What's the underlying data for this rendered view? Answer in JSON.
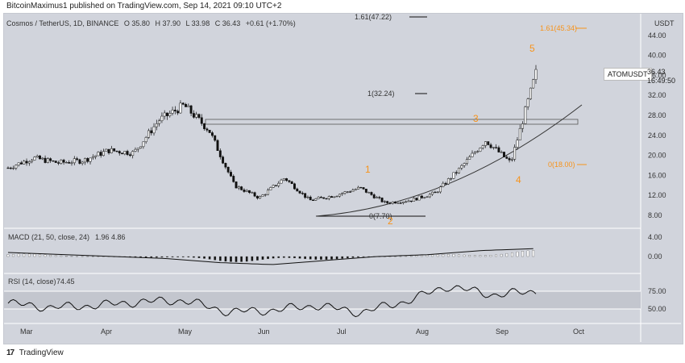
{
  "header": {
    "publish_line": "BitcoinMaximus1 published on TradingView.com, Sep 14, 2021 09:10 UTC+2"
  },
  "symbol": {
    "name": "Cosmos / TetherUS, 1D, BINANCE",
    "open": "O 35.80",
    "high": "H 37.90",
    "low": "L 33.98",
    "close": "C 36.43",
    "change": "+0.61 (+1.70%)"
  },
  "price_scale": {
    "title": "USDT",
    "ticks": [
      "44.00",
      "40.00",
      "36.00",
      "32.00",
      "28.00",
      "24.00",
      "20.00",
      "16.00",
      "12.00",
      "8.00"
    ],
    "ticker": "ATOMUSDT",
    "last_price": "36.43",
    "countdown": "16:49:50"
  },
  "time_axis": {
    "labels": [
      "Mar",
      "Apr",
      "May",
      "Jun",
      "Jul",
      "Aug",
      "Sep",
      "Oct"
    ]
  },
  "annotations": {
    "fib_levels": [
      "1.61(47.22)",
      "1.61(45.34)",
      "1(32.24)",
      "0(18.00)",
      "0(7.70)"
    ],
    "wave_labels": [
      "1",
      "2",
      "3",
      "4",
      "5"
    ]
  },
  "macd": {
    "label": "MACD (21, 50, close, 24)",
    "value1": "1.96",
    "value2": "4.86",
    "ticks": [
      "4.00",
      "0.00"
    ]
  },
  "rsi": {
    "label": "RSI (14, close)",
    "value": "74.45",
    "ticks": [
      "75.00",
      "50.00"
    ]
  },
  "footer": {
    "brand": "TradingView",
    "brand_mark": "17"
  },
  "colors": {
    "background": "#d1d4dc",
    "candle": "#111111",
    "accent": "#f7931a",
    "white_line": "#ffffff"
  },
  "chart_data": [
    {
      "type": "line",
      "title": "",
      "x": [
        "Feb 20",
        "Mar 1",
        "Mar 10",
        "Mar 20",
        "Apr 1",
        "Apr 10",
        "Apr 20",
        "May 1",
        "May 10",
        "May 20",
        "Jun 1",
        "Jun 10",
        "Jun 20",
        "Jul 1",
        "Jul 10",
        "Jul 20",
        "Aug 1",
        "Aug 10",
        "Aug 20",
        "Sep 1",
        "Sep 8",
        "Sep 14"
      ],
      "series": [
        {
          "values": [
            17.5,
            19.5,
            18.5,
            19.0,
            21.0,
            20.5,
            27.0,
            30.0,
            25.0,
            14.0,
            11.5,
            15.5,
            11.0,
            12.0,
            13.5,
            10.5,
            11.0,
            12.5,
            17.5,
            23.0,
            18.5,
            36.43
          ]
        }
      ],
      "ylim": [
        6,
        48
      ]
    },
    {
      "type": "bar",
      "title": "",
      "x": [
        "Feb 20",
        "Mar 20",
        "Apr 20",
        "May 20",
        "Jun 10",
        "Jun 20",
        "Jul 10",
        "Aug 1",
        "Aug 20",
        "Sep 1",
        "Sep 14"
      ],
      "series": [
        {
          "values": [
            1.0,
            0.5,
            0.0,
            -0.5,
            -1.5,
            -2.0,
            -1.0,
            0.0,
            0.5,
            1.5,
            1.96
          ]
        }
      ],
      "ylim": [
        -2.5,
        5.5
      ]
    },
    {
      "type": "line",
      "title": "",
      "x": [
        "Feb 20",
        "Mar 1",
        "Mar 20",
        "Apr 10",
        "May 1",
        "May 20",
        "Jun 10",
        "Jul 1",
        "Jul 20",
        "Aug 10",
        "Aug 25",
        "Sep 5",
        "Sep 14"
      ],
      "series": [
        {
          "values": [
            58,
            52,
            55,
            60,
            62,
            46,
            48,
            55,
            45,
            60,
            82,
            70,
            74.45
          ]
        }
      ],
      "ylim": [
        30,
        90
      ]
    }
  ]
}
